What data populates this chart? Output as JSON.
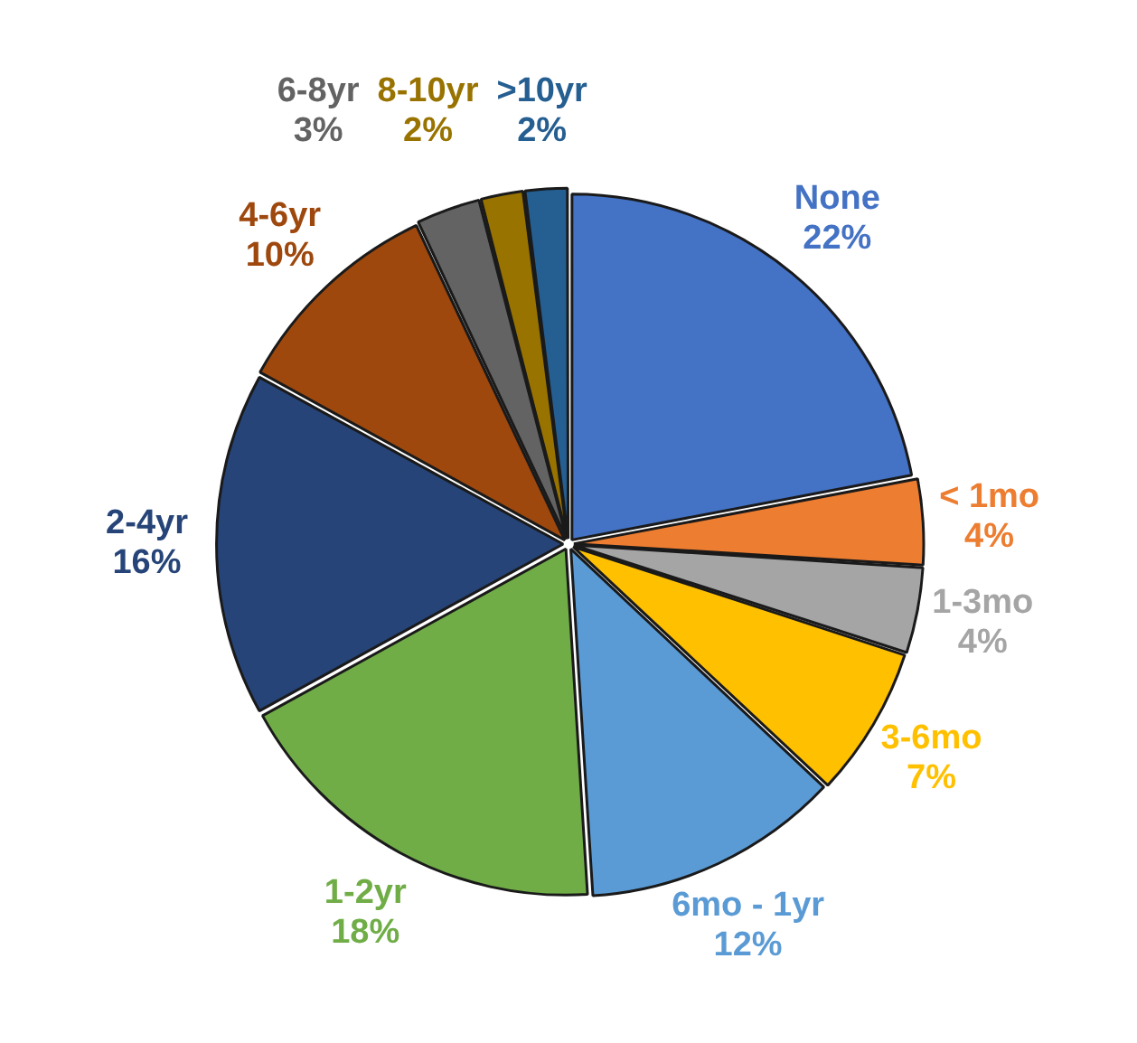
{
  "chart_data": {
    "type": "pie",
    "categories": [
      "None",
      "< 1mo",
      "1-3mo",
      "3-6mo",
      "6mo - 1yr",
      "1-2yr",
      "2-4yr",
      "4-6yr",
      "6-8yr",
      "8-10yr",
      ">10yr"
    ],
    "values": [
      22,
      4,
      4,
      7,
      12,
      18,
      16,
      10,
      3,
      2,
      2
    ],
    "value_labels": [
      "22%",
      "4%",
      "4%",
      "7%",
      "12%",
      "18%",
      "16%",
      "10%",
      "3%",
      "2%",
      "2%"
    ],
    "colors": [
      "#4472c4",
      "#ed7d31",
      "#a5a5a5",
      "#ffc000",
      "#5b9bd5",
      "#70ad47",
      "#264478",
      "#9e480e",
      "#636363",
      "#997300",
      "#255e91"
    ],
    "legend": false
  }
}
